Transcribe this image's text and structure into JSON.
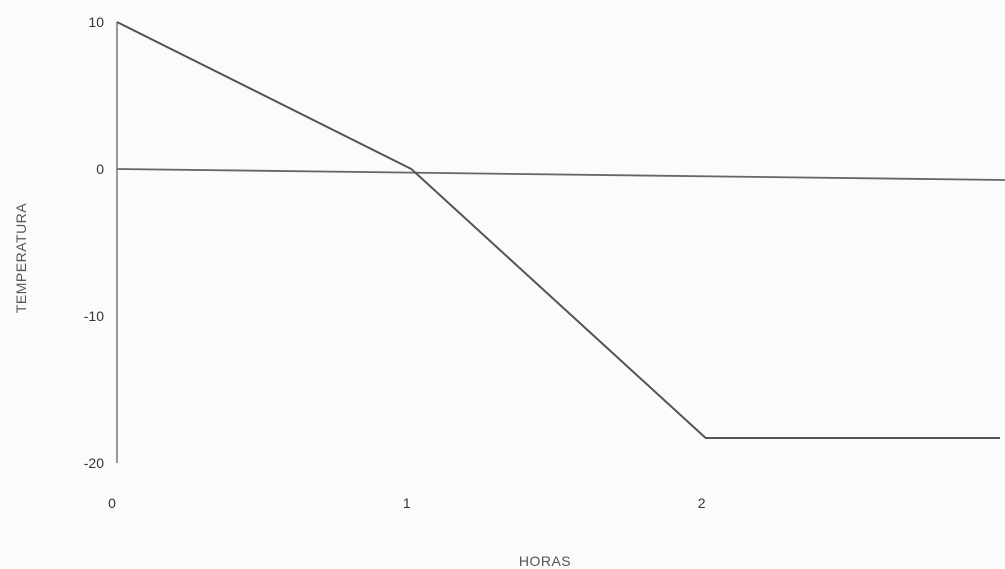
{
  "chart_data": {
    "type": "line",
    "xlabel": "HORAS",
    "ylabel": "TEMPERATURA",
    "x_ticks": [
      "0",
      "1",
      "2"
    ],
    "y_ticks": [
      "10",
      "0",
      "-10",
      "-20"
    ],
    "xlim": [
      0,
      3
    ],
    "ylim": [
      -20,
      10
    ],
    "grid": false,
    "line_color": "#555555",
    "reference_line": {
      "y": 0
    },
    "series": [
      {
        "x": [
          0,
          1,
          2,
          3
        ],
        "y": [
          10,
          0,
          -18.3,
          -18.3
        ]
      }
    ]
  }
}
